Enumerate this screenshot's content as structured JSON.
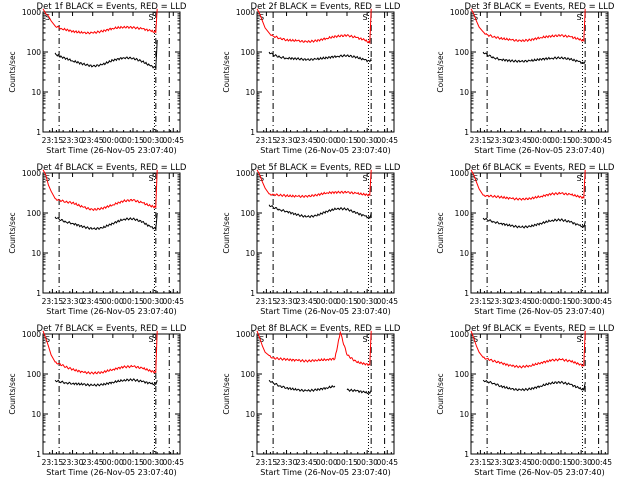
{
  "chart_data": {
    "type": "line",
    "shared": {
      "xlabel": "Start Time (26-Nov-05 23:07:40)",
      "ylabel": "Counts/sec",
      "x_tick_labels": [
        "23:15",
        "23:30",
        "23:45",
        "00:00",
        "00:15",
        "00:30",
        "00:45"
      ],
      "x_ticks_minutes_after_2300": [
        15,
        30,
        45,
        60,
        75,
        90,
        105
      ],
      "xlim_minutes_after_2300": [
        8,
        110
      ],
      "yscale": "log",
      "ylim": [
        1,
        1000
      ],
      "y_tick_labels": [
        "1",
        "10",
        "100",
        "1000"
      ],
      "corner_marks": [
        "S",
        "S"
      ],
      "colors": {
        "events": "#000000",
        "lld": "#ff0000"
      },
      "grid": false
    },
    "panels": [
      {
        "title": "Det 1f BLACK = Events, RED = LLD",
        "series": [
          {
            "name": "Events",
            "color": "#000000",
            "x": [
              17,
              18,
              22,
              30,
              38,
              45,
              52,
              60,
              68,
              75,
              82,
              88,
              92,
              93
            ],
            "y": [
              95,
              85,
              75,
              60,
              50,
              44,
              48,
              62,
              72,
              70,
              58,
              45,
              40,
              200
            ]
          },
          {
            "name": "LLD",
            "color": "#ff0000",
            "x": [
              8,
              10,
              12,
              14,
              17,
              22,
              30,
              38,
              45,
              52,
              60,
              68,
              75,
              82,
              88,
              92,
              93
            ],
            "y": [
              1200,
              900,
              800,
              600,
              450,
              380,
              330,
              300,
              300,
              330,
              390,
              420,
              410,
              380,
              340,
              310,
              1200
            ]
          }
        ],
        "dash_lines_x": [
          20,
          92,
          102
        ],
        "dot_lines_x": [
          91
        ]
      },
      {
        "title": "Det 2f BLACK = Events, RED = LLD",
        "series": [
          {
            "name": "Events",
            "color": "#000000",
            "x": [
              17,
              20,
              25,
              30,
              38,
              45,
              52,
              60,
              68,
              75,
              82,
              88,
              92,
              93
            ],
            "y": [
              100,
              85,
              75,
              70,
              68,
              64,
              66,
              72,
              78,
              82,
              74,
              64,
              58,
              70
            ]
          },
          {
            "name": "LLD",
            "color": "#ff0000",
            "x": [
              8,
              10,
              12,
              14,
              17,
              20,
              25,
              30,
              38,
              45,
              52,
              60,
              68,
              75,
              82,
              88,
              92,
              93
            ],
            "y": [
              1200,
              900,
              600,
              400,
              300,
              250,
              220,
              200,
              190,
              180,
              190,
              220,
              250,
              260,
              230,
              200,
              170,
              1200
            ]
          }
        ],
        "dash_lines_x": [
          20,
          93,
          103
        ],
        "dot_lines_x": [
          91
        ]
      },
      {
        "title": "Det 3f BLACK = Events, RED = LLD",
        "series": [
          {
            "name": "Events",
            "color": "#000000",
            "x": [
              17,
              20,
              25,
              30,
              38,
              45,
              52,
              60,
              68,
              75,
              82,
              88,
              92,
              93
            ],
            "y": [
              100,
              85,
              72,
              65,
              60,
              58,
              60,
              66,
              70,
              72,
              66,
              58,
              52,
              60
            ]
          },
          {
            "name": "LLD",
            "color": "#ff0000",
            "x": [
              8,
              10,
              12,
              14,
              17,
              20,
              25,
              30,
              38,
              45,
              52,
              60,
              68,
              75,
              82,
              88,
              92,
              93
            ],
            "y": [
              1200,
              900,
              600,
              420,
              320,
              270,
              240,
              220,
              200,
              190,
              200,
              230,
              250,
              260,
              240,
              210,
              190,
              1200
            ]
          }
        ],
        "dash_lines_x": [
          20,
          93,
          103
        ],
        "dot_lines_x": [
          91
        ]
      },
      {
        "title": "Det 4f BLACK = Events, RED = LLD",
        "series": [
          {
            "name": "Events",
            "color": "#000000",
            "x": [
              17,
              20,
              25,
              30,
              38,
              45,
              52,
              60,
              68,
              75,
              82,
              88,
              92,
              93
            ],
            "y": [
              80,
              70,
              60,
              55,
              45,
              40,
              42,
              55,
              70,
              72,
              60,
              45,
              40,
              100
            ]
          },
          {
            "name": "LLD",
            "color": "#ff0000",
            "x": [
              8,
              10,
              12,
              14,
              17,
              20,
              25,
              30,
              38,
              45,
              52,
              60,
              68,
              75,
              82,
              88,
              92,
              93
            ],
            "y": [
              1200,
              900,
              500,
              350,
              230,
              210,
              190,
              180,
              140,
              120,
              130,
              160,
              200,
              210,
              180,
              150,
              140,
              1200
            ]
          }
        ],
        "dash_lines_x": [
          20,
          92,
          102
        ],
        "dot_lines_x": [
          91
        ]
      },
      {
        "title": "Det 5f BLACK = Events, RED = LLD",
        "series": [
          {
            "name": "Events",
            "color": "#000000",
            "x": [
              17,
              20,
              25,
              30,
              38,
              45,
              52,
              60,
              68,
              75,
              82,
              88,
              92,
              93
            ],
            "y": [
              160,
              140,
              120,
              110,
              90,
              80,
              85,
              110,
              130,
              125,
              100,
              85,
              75,
              100
            ]
          },
          {
            "name": "LLD",
            "color": "#ff0000",
            "x": [
              8,
              10,
              12,
              14,
              17,
              20,
              25,
              30,
              38,
              45,
              52,
              60,
              68,
              75,
              82,
              88,
              92,
              93
            ],
            "y": [
              1200,
              900,
              600,
              420,
              300,
              290,
              280,
              270,
              260,
              260,
              280,
              320,
              330,
              330,
              310,
              290,
              280,
              1200
            ]
          }
        ],
        "dash_lines_x": [
          20,
          93,
          103
        ],
        "dot_lines_x": [
          91
        ]
      },
      {
        "title": "Det 6f BLACK = Events, RED = LLD",
        "series": [
          {
            "name": "Events",
            "color": "#000000",
            "x": [
              17,
              20,
              25,
              30,
              38,
              45,
              52,
              60,
              68,
              75,
              82,
              88,
              92,
              93
            ],
            "y": [
              75,
              68,
              60,
              55,
              48,
              44,
              46,
              55,
              65,
              68,
              60,
              50,
              45,
              60
            ]
          },
          {
            "name": "LLD",
            "color": "#ff0000",
            "x": [
              8,
              10,
              12,
              14,
              17,
              20,
              25,
              30,
              38,
              45,
              52,
              60,
              68,
              75,
              82,
              88,
              92,
              93
            ],
            "y": [
              1200,
              900,
              600,
              400,
              280,
              270,
              260,
              250,
              230,
              220,
              230,
              260,
              300,
              310,
              290,
              260,
              240,
              1200
            ]
          }
        ],
        "dash_lines_x": [
          20,
          93,
          103
        ],
        "dot_lines_x": [
          91
        ]
      },
      {
        "title": "Det 7f BLACK = Events, RED = LLD",
        "series": [
          {
            "name": "Events",
            "color": "#000000",
            "x": [
              17,
              20,
              25,
              30,
              38,
              45,
              52,
              60,
              68,
              75,
              82,
              88,
              92,
              93
            ],
            "y": [
              70,
              65,
              60,
              58,
              55,
              52,
              54,
              62,
              70,
              72,
              65,
              58,
              55,
              70
            ]
          },
          {
            "name": "LLD",
            "color": "#ff0000",
            "x": [
              8,
              10,
              12,
              14,
              17,
              20,
              25,
              30,
              38,
              45,
              52,
              60,
              68,
              75,
              82,
              88,
              92,
              93
            ],
            "y": [
              1200,
              800,
              500,
              300,
              200,
              180,
              150,
              130,
              110,
              105,
              110,
              130,
              150,
              155,
              140,
              120,
              110,
              1200
            ]
          }
        ],
        "dash_lines_x": [
          20,
          92,
          102
        ],
        "dot_lines_x": [
          91
        ]
      },
      {
        "title": "Det 8f BLACK = Events, RED = LLD",
        "series": [
          {
            "name": "Events",
            "color": "#000000",
            "x": [
              17,
              20,
              25,
              30,
              38,
              45,
              52,
              60,
              66,
              70,
              75,
              82,
              88,
              92,
              93
            ],
            "y": [
              70,
              60,
              50,
              45,
              40,
              38,
              40,
              45,
              50,
              null,
              40,
              38,
              35,
              33,
              40
            ]
          },
          {
            "name": "LLD",
            "color": "#ff0000",
            "x": [
              8,
              10,
              12,
              14,
              17,
              20,
              25,
              30,
              38,
              45,
              52,
              60,
              66,
              70,
              75,
              82,
              88,
              92,
              93
            ],
            "y": [
              1200,
              800,
              500,
              350,
              290,
              250,
              240,
              230,
              220,
              210,
              220,
              230,
              240,
              1100,
              300,
              200,
              180,
              170,
              1200
            ]
          }
        ],
        "dash_lines_x": [
          20,
          93,
          103
        ],
        "dot_lines_x": [
          91
        ]
      },
      {
        "title": "Det 9f BLACK = Events, RED = LLD",
        "series": [
          {
            "name": "Events",
            "color": "#000000",
            "x": [
              17,
              20,
              25,
              30,
              38,
              45,
              52,
              60,
              68,
              75,
              82,
              88,
              92,
              93
            ],
            "y": [
              70,
              65,
              58,
              50,
              42,
              40,
              42,
              50,
              60,
              62,
              55,
              45,
              40,
              60
            ]
          },
          {
            "name": "LLD",
            "color": "#ff0000",
            "x": [
              8,
              10,
              12,
              14,
              17,
              20,
              25,
              30,
              38,
              45,
              52,
              60,
              68,
              75,
              82,
              88,
              92,
              93
            ],
            "y": [
              1200,
              800,
              500,
              350,
              260,
              240,
              210,
              190,
              160,
              150,
              160,
              190,
              220,
              230,
              210,
              180,
              160,
              1200
            ]
          }
        ],
        "dash_lines_x": [
          20,
          93,
          103
        ],
        "dot_lines_x": [
          91
        ]
      }
    ]
  }
}
